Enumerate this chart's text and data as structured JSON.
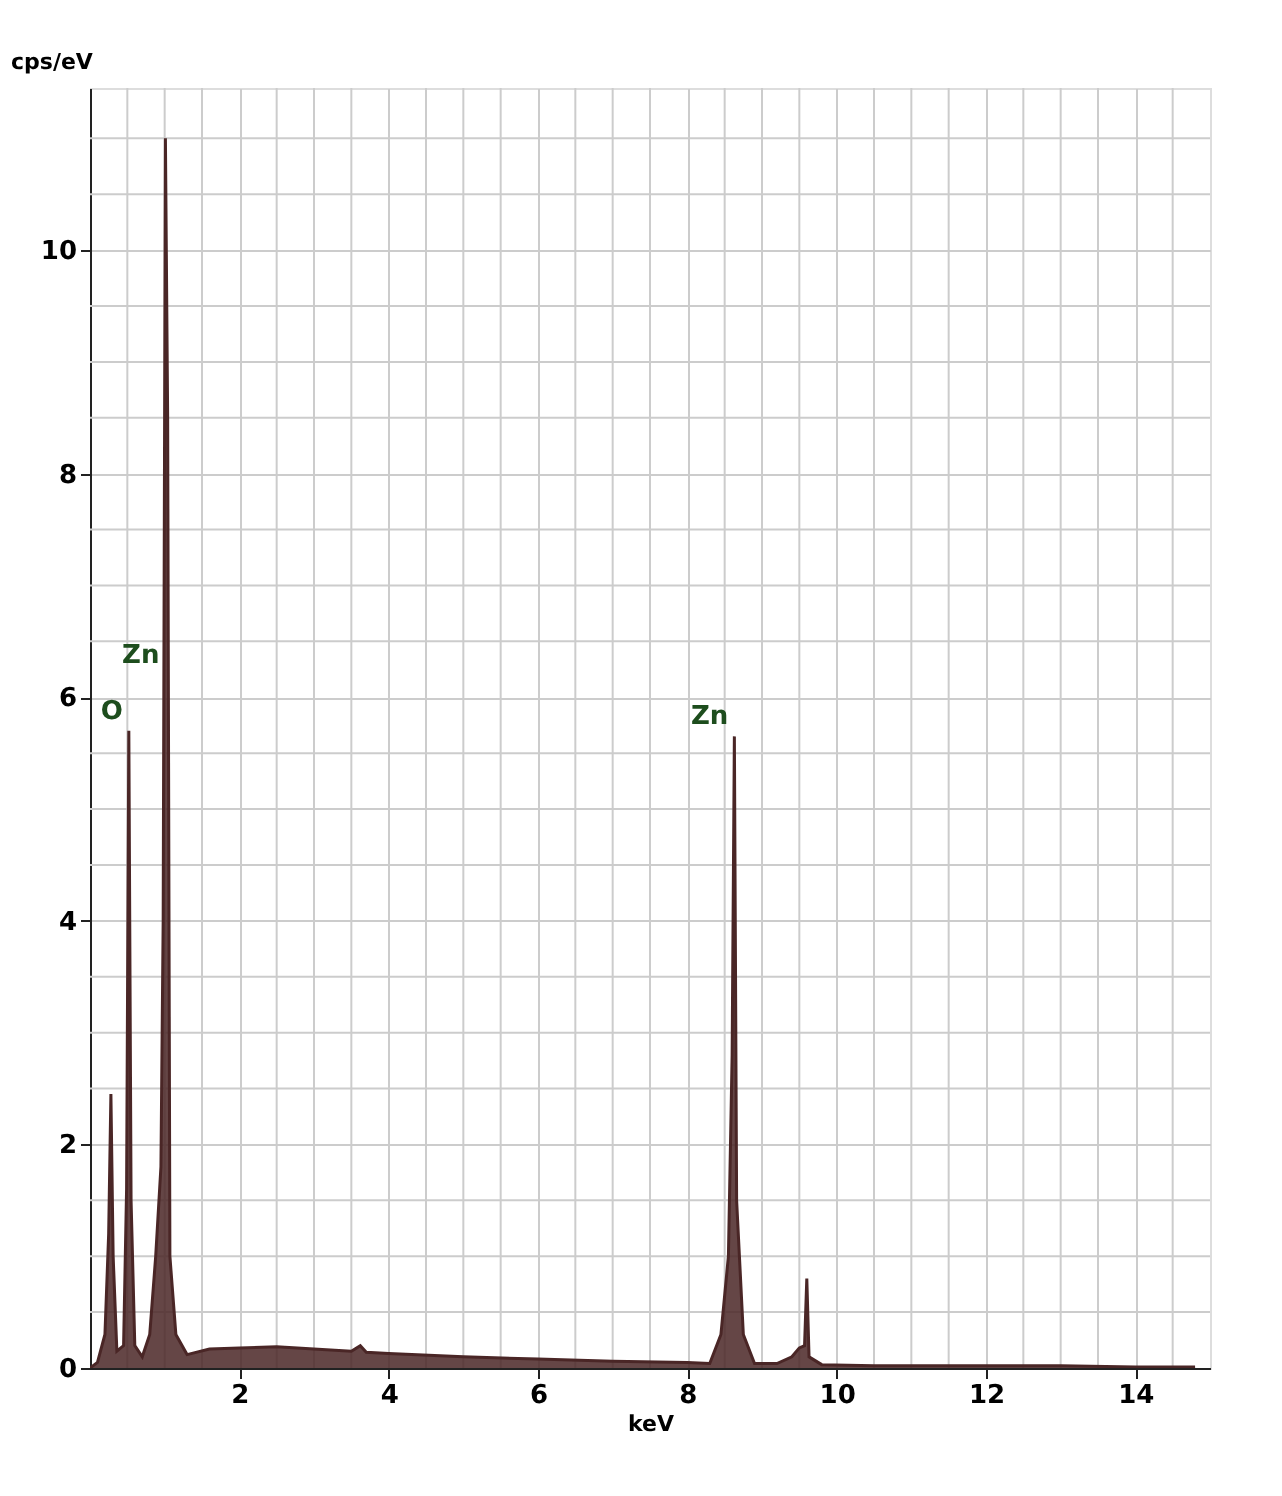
{
  "chart_data": {
    "type": "area",
    "xlabel": "keV",
    "ylabel": "cps/eV",
    "xlim": [
      0,
      15
    ],
    "ylim": [
      0,
      11.45
    ],
    "xticks": [
      {
        "value": 0.5,
        "label": null
      },
      {
        "value": 1,
        "label": null
      },
      {
        "value": 1.5,
        "label": null
      },
      2,
      {
        "value": 2.5,
        "label": null
      },
      {
        "value": 3,
        "label": null
      },
      {
        "value": 3.5,
        "label": null
      },
      4,
      {
        "value": 4.5,
        "label": null
      },
      {
        "value": 5,
        "label": null
      },
      {
        "value": 5.5,
        "label": null
      },
      6,
      {
        "value": 6.5,
        "label": null
      },
      {
        "value": 7,
        "label": null
      },
      {
        "value": 7.5,
        "label": null
      },
      8,
      {
        "value": 8.5,
        "label": null
      },
      {
        "value": 9,
        "label": null
      },
      {
        "value": 9.5,
        "label": null
      },
      10,
      {
        "value": 10.5,
        "label": null
      },
      {
        "value": 11,
        "label": null
      },
      {
        "value": 11.5,
        "label": null
      },
      12,
      {
        "value": 12.5,
        "label": null
      },
      {
        "value": 13,
        "label": null
      },
      {
        "value": 13.5,
        "label": null
      },
      14,
      {
        "value": 14.5,
        "label": null
      }
    ],
    "yticks": [
      0,
      {
        "value": 0.5,
        "label": null
      },
      {
        "value": 1,
        "label": null
      },
      {
        "value": 1.5,
        "label": null
      },
      2,
      {
        "value": 2.5,
        "label": null
      },
      {
        "value": 3,
        "label": null
      },
      {
        "value": 3.5,
        "label": null
      },
      4,
      {
        "value": 4.5,
        "label": null
      },
      {
        "value": 5,
        "label": null
      },
      {
        "value": 5.5,
        "label": null
      },
      6,
      {
        "value": 6.5,
        "label": null
      },
      {
        "value": 7,
        "label": null
      },
      {
        "value": 7.5,
        "label": null
      },
      8,
      {
        "value": 8.5,
        "label": null
      },
      {
        "value": 9,
        "label": null
      },
      {
        "value": 9.5,
        "label": null
      },
      10,
      {
        "value": 10.5,
        "label": null
      },
      {
        "value": 11,
        "label": null
      }
    ],
    "grid": true,
    "series": [
      {
        "color": "#4a2626",
        "x": [
          0.0,
          0.1,
          0.2,
          0.25,
          0.28,
          0.31,
          0.36,
          0.45,
          0.49,
          0.52,
          0.55,
          0.6,
          0.7,
          0.8,
          0.88,
          0.95,
          0.98,
          1.01,
          1.04,
          1.07,
          1.15,
          1.3,
          1.6,
          2.0,
          2.5,
          3.0,
          3.5,
          3.62,
          3.7,
          4.0,
          5.0,
          6.0,
          7.0,
          8.0,
          8.3,
          8.45,
          8.55,
          8.6,
          8.63,
          8.66,
          8.75,
          8.9,
          9.2,
          9.4,
          9.5,
          9.57,
          9.6,
          9.63,
          9.8,
          10.5,
          12.0,
          13.0,
          14.0,
          14.8
        ],
        "values": [
          0,
          0.05,
          0.3,
          1.2,
          2.45,
          1.0,
          0.15,
          0.2,
          1.6,
          5.7,
          1.5,
          0.2,
          0.1,
          0.3,
          1.0,
          1.8,
          4.0,
          11.0,
          8.5,
          1.0,
          0.3,
          0.12,
          0.17,
          0.18,
          0.19,
          0.17,
          0.15,
          0.2,
          0.14,
          0.13,
          0.1,
          0.08,
          0.06,
          0.05,
          0.04,
          0.3,
          1.0,
          2.8,
          5.65,
          1.5,
          0.3,
          0.04,
          0.04,
          0.1,
          0.18,
          0.2,
          0.8,
          0.1,
          0.03,
          0.02,
          0.02,
          0.02,
          0.01,
          0.01
        ]
      }
    ],
    "annotations": [
      {
        "text": "O",
        "x": 0.52,
        "y": 5.7
      },
      {
        "text": "Zn",
        "x": 1.01,
        "y": 6.2
      },
      {
        "text": "Zn",
        "x": 8.63,
        "y": 5.65
      }
    ]
  }
}
